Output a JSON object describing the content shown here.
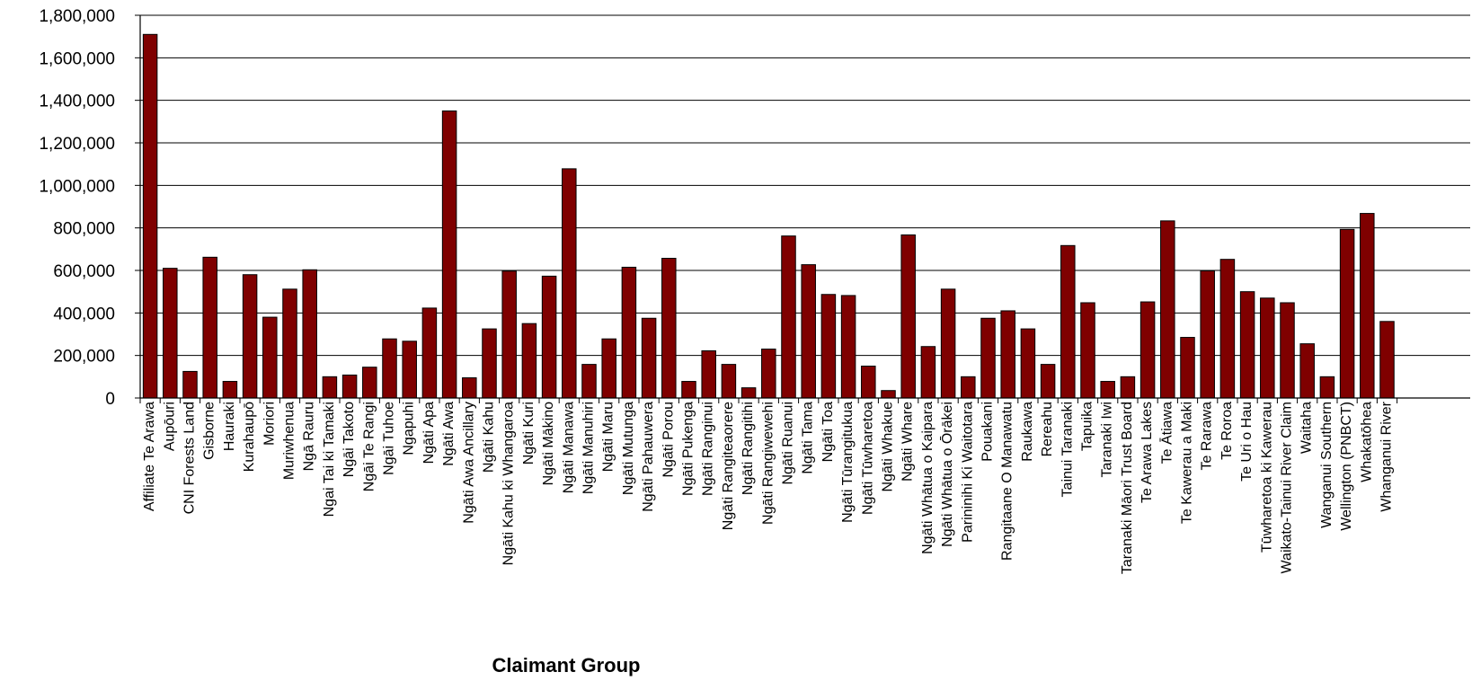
{
  "chart_data": {
    "type": "bar",
    "title": "",
    "xlabel": "Claimant Group",
    "ylabel": "",
    "ylim": [
      0,
      1800000
    ],
    "yticks": [
      "1,800,000",
      "1,600,000",
      "1,400,000",
      "1,200,000",
      "1,000,000",
      "800,000",
      "600,000",
      "400,000",
      "200,000",
      "0"
    ],
    "grid": true,
    "legend": "none",
    "bar_color": "#7f0000",
    "categories": [
      "Affiliate Te Arawa",
      "Aupōuri",
      "CNI Forests Land",
      "Gisborne",
      "Hauraki",
      "Kurahaupō",
      "Moriori",
      "Muriwhenua",
      "Ngā Rauru",
      "Ngai Tai ki Tamaki",
      "Ngāi Takoto",
      "Ngāi Te Rangi",
      "Ngāi Tuhoe",
      "Ngapuhi",
      "Ngāti Apa",
      "Ngāti Awa",
      "Ngāti Awa Ancillary",
      "Ngāti Kahu",
      "Ngāti Kahu ki Whangaroa",
      "Ngāti Kuri",
      "Ngāti Mākino",
      "Ngāti Manawa",
      "Ngāti Manuhiri",
      "Ngāti Maru",
      "Ngāti Mutunga",
      "Ngāti Pahauwera",
      "Ngāti Porou",
      "Ngāti Pukenga",
      "Ngāti Ranginui",
      "Ngāti Rangiteaorere",
      "Ngāti Rangitihi",
      "Ngāti Rangiwewehi",
      "Ngāti Ruanui",
      "Ngāti Tama",
      "Ngāti Toa",
      "Ngāti Tūrangitukua",
      "Ngāti Tūwharetoa",
      "Ngāti Whakue",
      "Ngāti Whare",
      "Ngāti Whātua o Kaipara",
      "Ngāti Whātua o Ōrākei",
      "Parininihi Ki Waitotara",
      "Pouakani",
      "Rangitaane O Manawatu",
      "Raukawa",
      "Rereahu",
      "Tainui Taranaki",
      "Tapuika",
      "Taranaki Iwi",
      "Taranaki Māori Trust Board",
      "Te Arawa Lakes",
      "Te Ātiawa",
      "Te Kawerau a Maki",
      "Te Rarawa",
      "Te Roroa",
      "Te Uri o Hau",
      "Tūwharetoa ki Kawerau",
      "Waikato-Tainui River Claim",
      "Waitaha",
      "Wanganui Southern",
      "Wellington (PNBCT)",
      "Whakatōhea",
      "Whanganui River"
    ],
    "values": [
      1710000,
      610000,
      125000,
      662000,
      78000,
      580000,
      380000,
      512000,
      603000,
      100000,
      108000,
      145000,
      278000,
      267000,
      423000,
      1350000,
      95000,
      325000,
      597000,
      350000,
      573000,
      1078000,
      158000,
      278000,
      615000,
      375000,
      657000,
      78000,
      222000,
      158000,
      48000,
      230000,
      762000,
      627000,
      487000,
      482000,
      150000,
      35000,
      767000,
      242000,
      512000,
      100000,
      375000,
      410000,
      325000,
      158000,
      717000,
      448000,
      78000,
      100000,
      452000,
      833000,
      285000,
      598000,
      652000,
      500000,
      470000,
      448000,
      255000,
      100000,
      793000,
      868000,
      360000
    ]
  }
}
